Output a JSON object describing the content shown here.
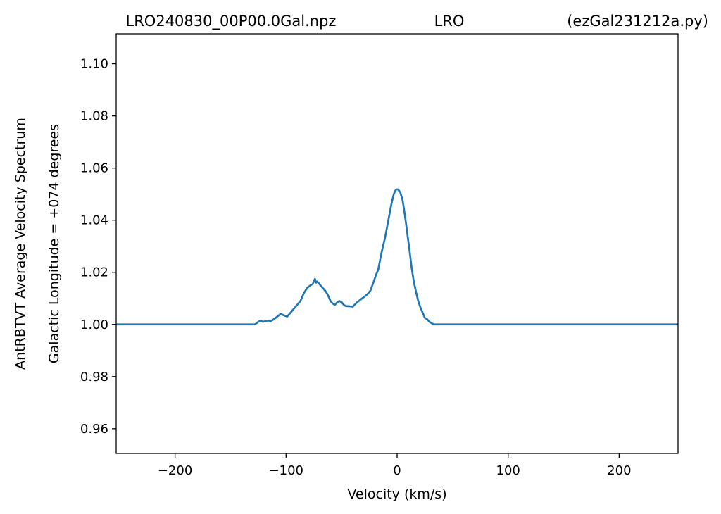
{
  "header": {
    "title_left": "LRO240830_00P00.0Gal.npz",
    "title_center": "LRO",
    "title_right": "(ezGal231212a.py)"
  },
  "chart_data": {
    "type": "line",
    "xlabel": "Velocity (km/s)",
    "ylabel_outer": "AntRBTVT Average Velocity Spectrum",
    "ylabel_inner": "Galactic Longitude = +074 degrees",
    "xlim": [
      -253,
      253
    ],
    "ylim": [
      0.9505,
      1.1115
    ],
    "xticks": [
      -200,
      -100,
      0,
      100,
      200
    ],
    "xtick_labels": [
      "−200",
      "−100",
      "0",
      "100",
      "200"
    ],
    "yticks": [
      0.96,
      0.98,
      1.0,
      1.02,
      1.04,
      1.06,
      1.08,
      1.1
    ],
    "ytick_labels": [
      "0.96",
      "0.98",
      "1.00",
      "1.02",
      "1.04",
      "1.06",
      "1.08",
      "1.10"
    ],
    "grid": false,
    "line_color": "#1f77b4",
    "series": [
      {
        "x": [
          -253,
          -128,
          -125,
          -123,
          -121,
          -118,
          -116,
          -114,
          -111,
          -108,
          -105,
          -102,
          -99,
          -96,
          -93,
          -90,
          -87,
          -84,
          -81,
          -78,
          -76,
          -74,
          -73,
          -72,
          -70,
          -68,
          -66,
          -64,
          -62,
          -60,
          -58,
          -56,
          -54,
          -52,
          -50,
          -48,
          -46,
          -44,
          -40,
          -36,
          -33,
          -30,
          -27,
          -24,
          -21,
          -19,
          -17,
          -15,
          -13,
          -11,
          -9,
          -7,
          -5,
          -3,
          -1,
          1,
          3,
          5,
          7,
          9,
          11,
          13,
          15,
          17,
          19,
          21,
          23,
          25,
          27,
          29,
          31,
          33,
          35,
          37,
          39,
          41,
          43,
          45,
          47,
          253
        ],
        "y": [
          1.0,
          1.0,
          1.001,
          1.0015,
          1.001,
          1.0013,
          1.0015,
          1.0012,
          1.002,
          1.003,
          1.004,
          1.0035,
          1.003,
          1.0045,
          1.006,
          1.0075,
          1.009,
          1.012,
          1.014,
          1.015,
          1.0155,
          1.0175,
          1.016,
          1.0165,
          1.0155,
          1.0145,
          1.0135,
          1.0125,
          1.011,
          1.009,
          1.008,
          1.0075,
          1.0085,
          1.009,
          1.0085,
          1.0075,
          1.007,
          1.007,
          1.0068,
          1.0085,
          1.0095,
          1.0105,
          1.0115,
          1.013,
          1.0165,
          1.019,
          1.021,
          1.0255,
          1.0295,
          1.033,
          1.0375,
          1.042,
          1.0465,
          1.05,
          1.0518,
          1.0518,
          1.0505,
          1.0475,
          1.042,
          1.0355,
          1.029,
          1.022,
          1.0165,
          1.0125,
          1.009,
          1.0065,
          1.0045,
          1.0025,
          1.002,
          1.001,
          1.0005,
          1.0,
          1.0,
          1.0,
          1.0,
          1.0,
          1.0,
          1.0,
          1.0,
          1.0
        ]
      }
    ]
  }
}
